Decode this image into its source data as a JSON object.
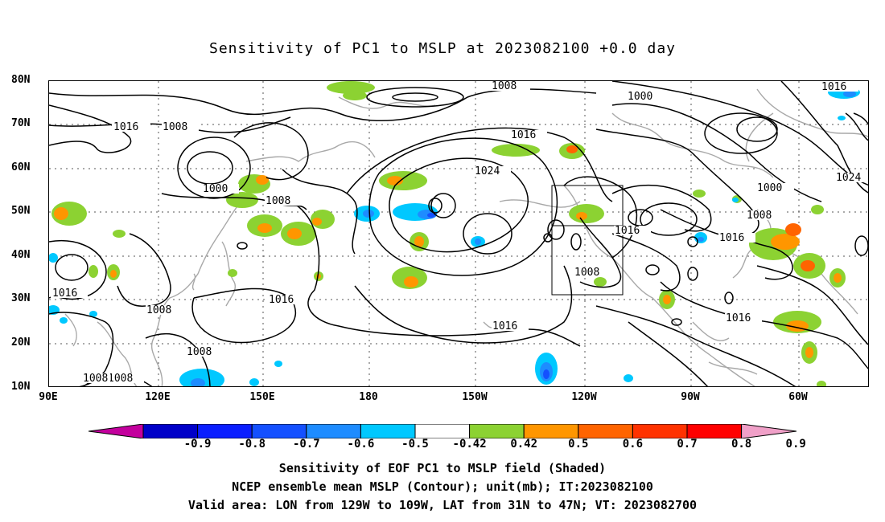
{
  "title": "Sensitivity of PC1 to MSLP at 2023082100 +0.0 day",
  "lat_labels": [
    "80N",
    "70N",
    "60N",
    "50N",
    "40N",
    "30N",
    "20N",
    "10N"
  ],
  "lon_labels": [
    "90E",
    "120E",
    "150E",
    "180",
    "150W",
    "120W",
    "90W",
    "60W"
  ],
  "contour_labels": [
    "1008",
    "1016",
    "1016",
    "1008",
    "1000",
    "1008",
    "1016",
    "1024",
    "1000",
    "1008",
    "1016",
    "1016",
    "1008",
    "1024",
    "1016",
    "1016",
    "1008",
    "1016",
    "1008",
    "1008",
    "1016",
    "1000",
    "1008"
  ],
  "colorbar": {
    "labels": [
      "-0.9",
      "-0.8",
      "-0.7",
      "-0.6",
      "-0.5",
      "-0.42",
      "0.42",
      "0.5",
      "0.6",
      "0.7",
      "0.8",
      "0.9"
    ],
    "colors": [
      "#c3009d",
      "#0000c8",
      "#0a1eff",
      "#1450ff",
      "#1e8cff",
      "#00c8ff",
      "#ffffff",
      "#8cd232",
      "#ff9600",
      "#ff6400",
      "#ff3200",
      "#ff0000",
      "#f0a0c8"
    ]
  },
  "footer": {
    "line1": "Sensitivity of EOF PC1 to MSLP field (Shaded)",
    "line2": "NCEP ensemble mean MSLP (Contour); unit(mb); IT:2023082100",
    "line3": "Valid area: LON from 129W to 109W, LAT from 31N to 47N; VT: 2023082700"
  }
}
